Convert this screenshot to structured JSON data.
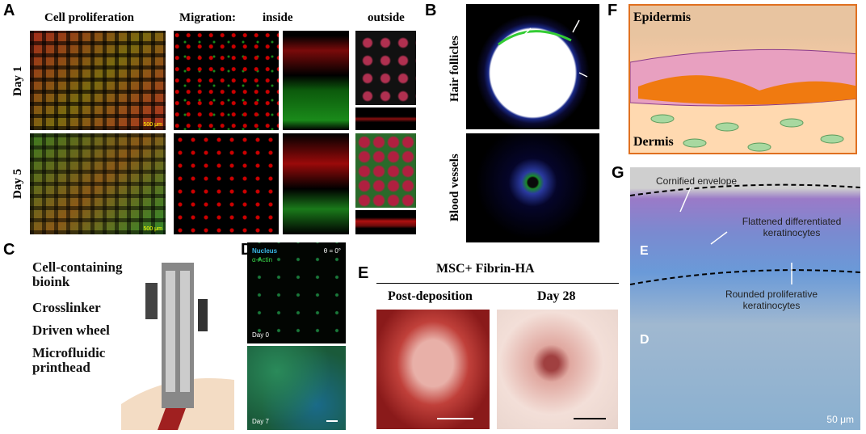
{
  "panel_a": {
    "letter": "A",
    "cell_proliferation": "Cell proliferation",
    "migration": "Migration:",
    "inside": "inside",
    "outside": "outside",
    "day1": "Day 1",
    "day5": "Day 5",
    "scale_top": "500 μm",
    "scale_bottom": "500 μm"
  },
  "panel_b": {
    "letter": "B",
    "hair_follicles": "Hair follicles",
    "blood_vessels": "Blood vessels"
  },
  "panel_c": {
    "letter": "C",
    "labels": [
      "Cell-containing bioink",
      "Crosslinker",
      "Driven wheel",
      "Microfluidic printhead"
    ]
  },
  "panel_d": {
    "letter": "D",
    "nucleus": "Nucleus",
    "actin": "α-Actin",
    "angle": "θ = 0°",
    "day0": "Day 0",
    "day7": "Day 7"
  },
  "panel_e": {
    "letter": "E",
    "title": "MSC+ Fibrin-HA",
    "post_deposition": "Post-deposition",
    "day28": "Day 28"
  },
  "panel_f": {
    "letter": "F",
    "epidermis": "Epidermis",
    "dermis": "Dermis"
  },
  "panel_g": {
    "letter": "G",
    "cornified": "Cornified envelope",
    "flattened": "Flattened differentiated keratinocytes",
    "rounded": "Rounded proliferative keratinocytes",
    "e_label": "E",
    "d_label": "D",
    "scale": "50 μm"
  }
}
